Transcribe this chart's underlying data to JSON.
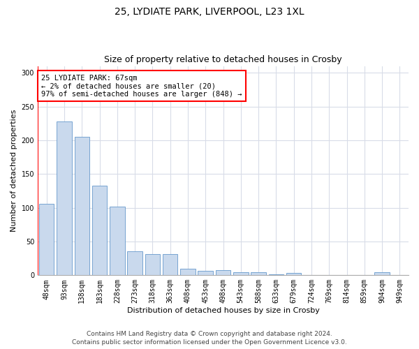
{
  "title1": "25, LYDIATE PARK, LIVERPOOL, L23 1XL",
  "title2": "Size of property relative to detached houses in Crosby",
  "xlabel": "Distribution of detached houses by size in Crosby",
  "ylabel": "Number of detached properties",
  "categories": [
    "48sqm",
    "93sqm",
    "138sqm",
    "183sqm",
    "228sqm",
    "273sqm",
    "318sqm",
    "363sqm",
    "408sqm",
    "453sqm",
    "498sqm",
    "543sqm",
    "588sqm",
    "633sqm",
    "679sqm",
    "724sqm",
    "769sqm",
    "814sqm",
    "859sqm",
    "904sqm",
    "949sqm"
  ],
  "values": [
    106,
    228,
    205,
    133,
    102,
    36,
    31,
    31,
    10,
    7,
    8,
    4,
    4,
    1,
    3,
    0,
    0,
    0,
    0,
    4,
    0
  ],
  "bar_color": "#c9d9ed",
  "bar_edge_color": "#6699cc",
  "annotation_text_line1": "25 LYDIATE PARK: 67sqm",
  "annotation_text_line2": "← 2% of detached houses are smaller (20)",
  "annotation_text_line3": "97% of semi-detached houses are larger (848) →",
  "annotation_box_color": "white",
  "annotation_box_edge_color": "red",
  "ylim": [
    0,
    310
  ],
  "yticks": [
    0,
    50,
    100,
    150,
    200,
    250,
    300
  ],
  "footer1": "Contains HM Land Registry data © Crown copyright and database right 2024.",
  "footer2": "Contains public sector information licensed under the Open Government Licence v3.0.",
  "grid_color": "#d8dce8",
  "title1_fontsize": 10,
  "title2_fontsize": 9,
  "axis_label_fontsize": 8,
  "tick_fontsize": 7,
  "annotation_fontsize": 7.5,
  "footer_fontsize": 6.5
}
